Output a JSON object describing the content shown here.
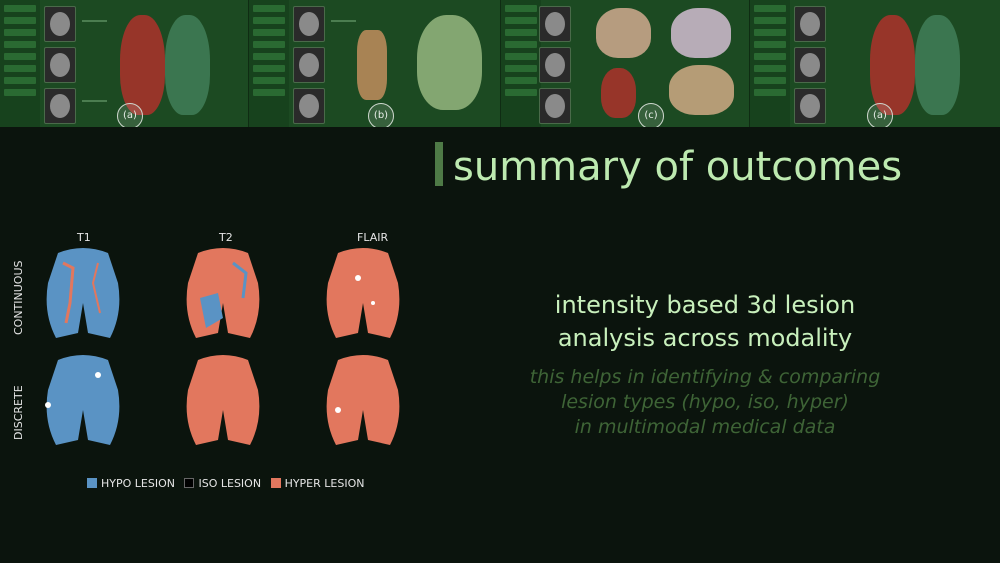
{
  "top_strip": {
    "labels": [
      "(a)",
      "(b)",
      "(c)",
      "(a)"
    ]
  },
  "title": "summary of outcomes",
  "figure": {
    "columns": [
      "T1",
      "T2",
      "FLAIR"
    ],
    "rows": [
      "CONTINUOUS",
      "DISCRETE"
    ],
    "legend": [
      {
        "label": "HYPO LESION",
        "color": "#5a93c4"
      },
      {
        "label": "ISO LESION",
        "color": "#000000"
      },
      {
        "label": "HYPER LESION",
        "color": "#e2775e"
      }
    ]
  },
  "headline": [
    "intensity based 3d lesion",
    "analysis across modality"
  ],
  "subtext": [
    "this helps in identifying & comparing",
    "lesion types (hypo, iso, hyper)",
    "in multimodal medical data"
  ],
  "colors": {
    "background": "#0b140d",
    "title": "#bdeab0",
    "accent_bar": "#4e7a46",
    "headline": "#c8f0bc",
    "subtext": "#3e6436",
    "hypo": "#5a93c4",
    "hyper": "#e2775e"
  }
}
